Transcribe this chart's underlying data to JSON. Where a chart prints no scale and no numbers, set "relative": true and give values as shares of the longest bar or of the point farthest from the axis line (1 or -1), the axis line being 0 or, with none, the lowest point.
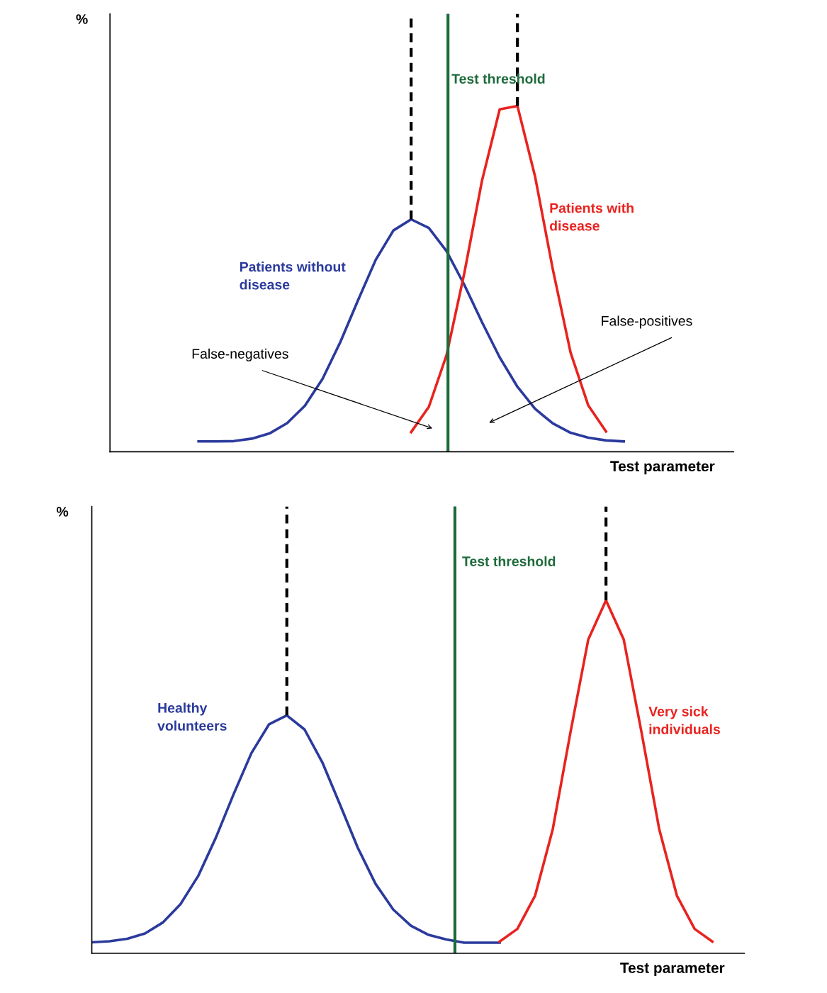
{
  "chart_data": [
    {
      "type": "line",
      "relative": true,
      "tick_labels": false,
      "ylabel": "%",
      "xlabel": "Test parameter",
      "categories": [
        null,
        null,
        null,
        null,
        null,
        null,
        null,
        null,
        null,
        null,
        null,
        null,
        null,
        null,
        null,
        null,
        null,
        null,
        null,
        null,
        null,
        null,
        null,
        null,
        null,
        null,
        null,
        null,
        null,
        null,
        null,
        null,
        null,
        null,
        null,
        null
      ],
      "series": [
        {
          "name": "Patients without disease",
          "color": "#2b3a9c",
          "values": [
            null,
            null,
            null,
            null,
            null,
            0.03,
            0.03,
            0.031,
            0.038,
            0.053,
            0.083,
            0.133,
            0.211,
            0.317,
            0.438,
            0.555,
            0.64,
            0.672,
            0.647,
            0.58,
            0.483,
            0.375,
            0.273,
            0.188,
            0.124,
            0.082,
            0.055,
            0.041,
            0.033,
            0.03,
            null,
            null,
            null,
            null,
            null,
            null
          ]
        },
        {
          "name": "Patients with disease",
          "color": "#e8231f",
          "values": [
            null,
            null,
            null,
            null,
            null,
            null,
            null,
            null,
            null,
            null,
            null,
            null,
            null,
            null,
            null,
            null,
            null,
            0.057,
            0.13,
            0.28,
            0.516,
            0.784,
            0.99,
            1.0,
            0.795,
            0.527,
            0.287,
            0.134,
            0.059,
            null,
            null,
            null,
            null,
            null,
            null,
            null
          ]
        }
      ],
      "annotations": [
        "False-negatives",
        "False-positives",
        "Test threshold"
      ]
    },
    {
      "type": "line",
      "relative": true,
      "tick_labels": false,
      "ylabel": "%",
      "xlabel": "Test parameter",
      "categories": [
        null,
        null,
        null,
        null,
        null,
        null,
        null,
        null,
        null,
        null,
        null,
        null,
        null,
        null,
        null,
        null,
        null,
        null,
        null,
        null,
        null,
        null,
        null,
        null,
        null,
        null,
        null,
        null,
        null,
        null,
        null,
        null,
        null,
        null,
        null,
        null,
        null
      ],
      "series": [
        {
          "name": "Healthy volunteers",
          "color": "#2b3a9c",
          "values": [
            0.031,
            0.034,
            0.041,
            0.056,
            0.087,
            0.139,
            0.219,
            0.328,
            0.451,
            0.567,
            0.649,
            0.674,
            0.634,
            0.541,
            0.421,
            0.299,
            0.197,
            0.124,
            0.078,
            0.052,
            0.039,
            0.03,
            0.03,
            0.03,
            null,
            null,
            null,
            null,
            null,
            null,
            null,
            null,
            null,
            null,
            null,
            null,
            null
          ]
        },
        {
          "name": "Very sick individuals",
          "color": "#e8231f",
          "values": [
            null,
            null,
            null,
            null,
            null,
            null,
            null,
            null,
            null,
            null,
            null,
            null,
            null,
            null,
            null,
            null,
            null,
            null,
            null,
            null,
            null,
            null,
            null,
            0.033,
            0.069,
            0.163,
            0.352,
            0.627,
            0.889,
            1.0,
            0.889,
            0.627,
            0.352,
            0.163,
            0.069,
            0.033,
            null
          ]
        }
      ],
      "annotations": [
        "Test threshold"
      ]
    }
  ]
}
